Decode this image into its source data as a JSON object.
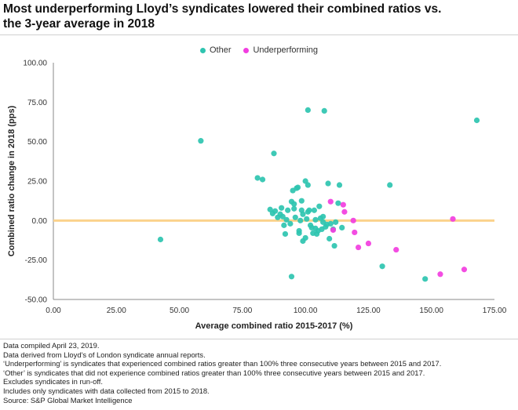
{
  "title": {
    "line1": "Most underperforming Lloyd’s syndicates lowered their combined ratios vs.",
    "line2": "the 3-year average in 2018"
  },
  "colors": {
    "other": "#2ec4b0",
    "underperforming": "#f23ee0",
    "reference_line": "#fbd28c",
    "axis": "#888888"
  },
  "notes": [
    "Data compiled April 23, 2019.",
    "Data derived from Lloyd's of London syndicate annual reports.",
    "‘Underperforming’ is syndicates that experienced combined ratios greater than 100% three consecutive years between 2015 and 2017.",
    "‘Other’ is syndicates that did not experience combined ratios greater than 100% three consecutive years between 2015 and 2017.",
    "Excludes syndicates in run-off.",
    "Includes only syndicates with data collected from 2015 to 2018.",
    "Source: S&P Global Market Intelligence"
  ],
  "chart_data": {
    "type": "scatter",
    "title": "Most underperforming Lloyd’s syndicates lowered their combined ratios vs. the 3-year average in 2018",
    "xlabel": "Average combined ratio 2015-2017 (%)",
    "ylabel": "Combined ratio change in 2018 (pps)",
    "xlim": [
      0,
      175
    ],
    "ylim": [
      -50,
      100
    ],
    "x_ticks": [
      "0.00",
      "25.00",
      "50.00",
      "75.00",
      "100.00",
      "125.00",
      "150.00",
      "175.00"
    ],
    "y_ticks": [
      "100.00",
      "75.00",
      "50.00",
      "25.00",
      "0.00",
      "-25.00",
      "-50.00"
    ],
    "reference_line_y": 0,
    "grid": false,
    "legend_position": "top-center",
    "series": [
      {
        "name": "Other",
        "points": [
          [
            42.5,
            -12
          ],
          [
            58.5,
            50.5
          ],
          [
            81,
            27
          ],
          [
            83,
            26
          ],
          [
            87.5,
            42.5
          ],
          [
            86,
            7
          ],
          [
            87,
            4.5
          ],
          [
            88,
            6
          ],
          [
            89,
            2
          ],
          [
            90,
            4
          ],
          [
            90.5,
            8
          ],
          [
            91,
            2.5
          ],
          [
            91.5,
            -3
          ],
          [
            92,
            -8.5
          ],
          [
            92.5,
            0.5
          ],
          [
            93,
            6.5
          ],
          [
            94,
            -2
          ],
          [
            94.5,
            12
          ],
          [
            95,
            19
          ],
          [
            95.5,
            10.5
          ],
          [
            95.5,
            7.5
          ],
          [
            96,
            2
          ],
          [
            96.5,
            20.5
          ],
          [
            97,
            21
          ],
          [
            97.5,
            -6.5
          ],
          [
            97.5,
            -8
          ],
          [
            98,
            0
          ],
          [
            98.5,
            6.5
          ],
          [
            98.5,
            12.5
          ],
          [
            99,
            4
          ],
          [
            99,
            -13
          ],
          [
            100,
            -11
          ],
          [
            100,
            25
          ],
          [
            100.5,
            1
          ],
          [
            101,
            5.5
          ],
          [
            101,
            22.5
          ],
          [
            101,
            70
          ],
          [
            101.5,
            6.5
          ],
          [
            102,
            -3
          ],
          [
            102.5,
            -4.5
          ],
          [
            103,
            -8
          ],
          [
            103.5,
            6.5
          ],
          [
            104,
            0.5
          ],
          [
            104,
            -5
          ],
          [
            104.5,
            -8.5
          ],
          [
            105,
            -6.5
          ],
          [
            105.5,
            9
          ],
          [
            106,
            1.5
          ],
          [
            106.5,
            -5.5
          ],
          [
            107,
            -1
          ],
          [
            107,
            2.5
          ],
          [
            107.5,
            69.5
          ],
          [
            108,
            -4
          ],
          [
            108.5,
            -2.5
          ],
          [
            109,
            23.5
          ],
          [
            109.5,
            -11.5
          ],
          [
            110,
            -2
          ],
          [
            111,
            -5.5
          ],
          [
            111.5,
            -16
          ],
          [
            112,
            -1
          ],
          [
            113,
            11
          ],
          [
            113.5,
            22.5
          ],
          [
            114.5,
            -4.5
          ],
          [
            94.5,
            -35.5
          ],
          [
            130.5,
            -29
          ],
          [
            133.5,
            22.5
          ],
          [
            147.5,
            -37
          ],
          [
            168,
            63.5
          ]
        ]
      },
      {
        "name": "Underperforming",
        "points": [
          [
            110,
            12
          ],
          [
            111,
            -6
          ],
          [
            115,
            10
          ],
          [
            115.5,
            5.5
          ],
          [
            119,
            0
          ],
          [
            119.5,
            -7.5
          ],
          [
            121,
            -17
          ],
          [
            125,
            -14.5
          ],
          [
            136,
            -18.5
          ],
          [
            153.5,
            -34
          ],
          [
            158.5,
            1
          ],
          [
            163,
            -31
          ]
        ]
      }
    ]
  }
}
